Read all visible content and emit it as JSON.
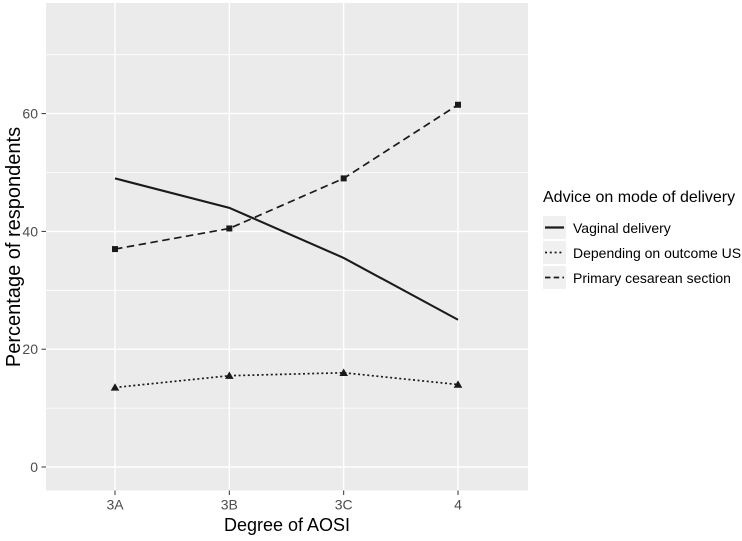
{
  "chart_data": {
    "type": "line",
    "title": "",
    "xlabel": "Degree of AOSI",
    "ylabel": "Percentage of respondents",
    "categories": [
      "3A",
      "3B",
      "3C",
      "4"
    ],
    "y_ticks": [
      0,
      20,
      40,
      60
    ],
    "y_minor_ticks": [
      10,
      30,
      50,
      70
    ],
    "ylim": [
      -4,
      79
    ],
    "grid": "white major and minor horizontal lines plus white vertical lines at categories on gray panel",
    "legend": {
      "title": "Advice on mode of delivery",
      "position": "right"
    },
    "series": [
      {
        "name": "Vaginal delivery",
        "linestyle": "solid",
        "marker": "none",
        "values": [
          49,
          44,
          35.5,
          25
        ]
      },
      {
        "name": "Depending on outcome US",
        "linestyle": "dotted",
        "marker": "triangle",
        "values": [
          13.5,
          15.5,
          16,
          14
        ]
      },
      {
        "name": "Primary cesarean section",
        "linestyle": "dashed",
        "marker": "square",
        "values": [
          37,
          40.5,
          49,
          61.5
        ]
      }
    ],
    "colors": {
      "line": "#1a1a1a",
      "panel_bg": "#ebebeb",
      "grid": "#ffffff",
      "tick_label": "#4d4d4d",
      "axis_title": "#000000",
      "legend_key_bg": "#f0f0f0"
    }
  }
}
